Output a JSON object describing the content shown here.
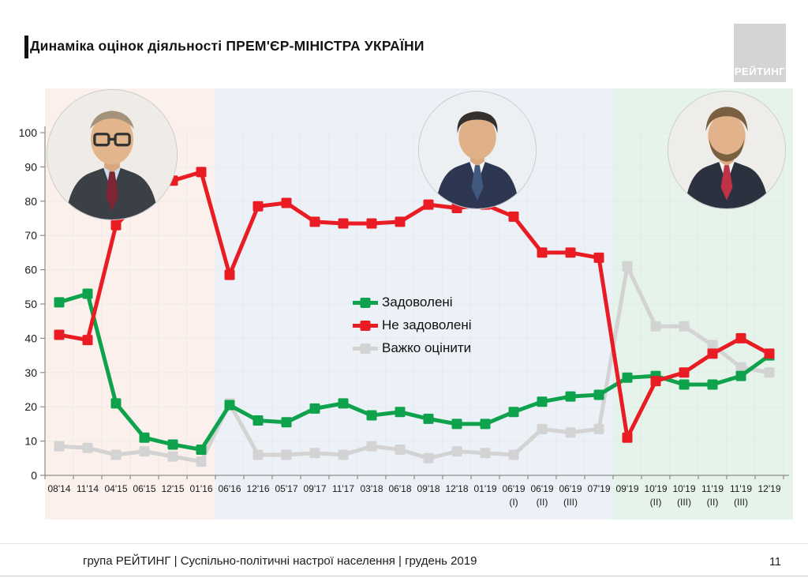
{
  "title": "Динаміка оцінок діяльності ПРЕМ'ЄР-МІНІСТРА УКРАЇНИ",
  "logo": {
    "text": "РЕЙТИНГ"
  },
  "footer": {
    "text": "група РЕЙТИНГ | Суспільно-політичні настрої населення  | грудень 2019",
    "page": "11"
  },
  "chart_data": {
    "type": "line",
    "title": "Динаміка оцінок діяльності ПРЕМ'ЄР-МІНІСТРА УКРАЇНИ",
    "xlabel": "",
    "ylabel": "",
    "ylim": [
      0,
      100
    ],
    "ytick_step": 10,
    "grid": true,
    "legend_position": "center",
    "marker": "square",
    "categories": [
      "08'14",
      "11'14",
      "04'15",
      "06'15",
      "12'15",
      "01'16",
      "06'16",
      "12'16",
      "05'17",
      "09'17",
      "11'17",
      "03'18",
      "06'18",
      "09'18",
      "12'18",
      "01'19",
      "06'19\n(I)",
      "06'19\n(II)",
      "06'19\n(III)",
      "07'19",
      "09'19",
      "10'19\n(II)",
      "10'19\n(III)",
      "11'19\n(II)",
      "11'19\n(III)",
      "12'19"
    ],
    "series": [
      {
        "name": "Задоволені",
        "color": "#0da24b",
        "values": [
          50.5,
          53,
          21,
          11,
          9,
          7.5,
          20.5,
          16,
          15.5,
          19.5,
          21,
          17.5,
          18.5,
          16.5,
          15,
          15,
          18.5,
          21.5,
          23,
          23.5,
          28.5,
          29,
          26.5,
          26.5,
          29,
          35
        ]
      },
      {
        "name": "Не задоволені",
        "color": "#ea1c23",
        "values": [
          41,
          39.5,
          73,
          81.5,
          86,
          88.5,
          58.5,
          78.5,
          79.5,
          74,
          73.5,
          73.5,
          74,
          79,
          78,
          79,
          75.5,
          65,
          65,
          63.5,
          11,
          27.5,
          30,
          35.5,
          40,
          35.5
        ]
      },
      {
        "name": "Важко оцінити",
        "color": "#d3d3d3",
        "values": [
          8.5,
          8,
          6,
          7,
          5.5,
          4,
          21,
          6,
          6,
          6.5,
          6,
          8.5,
          7.5,
          5,
          7,
          6.5,
          6,
          13.5,
          12.5,
          13.5,
          61,
          43.5,
          43.5,
          38,
          31.5,
          30
        ]
      }
    ],
    "background_bands": [
      {
        "start": 0,
        "end": 5,
        "color": "#fbf0ec"
      },
      {
        "start": 6,
        "end": 19,
        "color": "#ecf1f7"
      },
      {
        "start": 20,
        "end": 25,
        "color": "#e6f3ea"
      }
    ]
  }
}
